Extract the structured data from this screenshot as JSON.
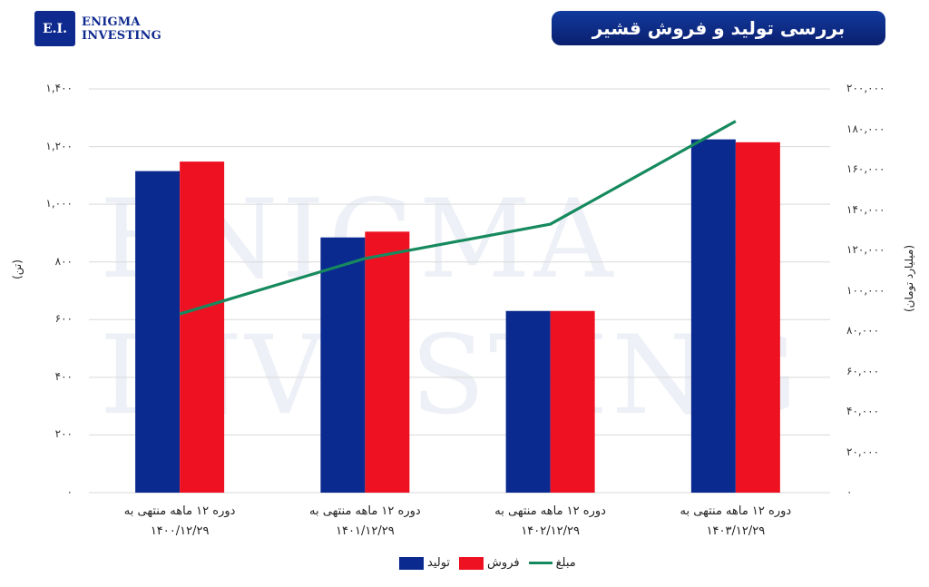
{
  "header": {
    "logo_mark": "E.I.",
    "logo_line1": "ENIGMA",
    "logo_line2": "INVESTING",
    "title": "بررسی تولید و فروش قشیر"
  },
  "watermark": "ENIGMA\nINVESTING",
  "colors": {
    "production": "#0a2a8f",
    "sales": "#ee1122",
    "amount": "#168a5e",
    "title_bg": "#0f2a8f"
  },
  "axes": {
    "left_label": "(تن)",
    "right_label": "(میلیارد تومان)",
    "left_ticks": [
      "۰",
      "۲۰۰",
      "۴۰۰",
      "۶۰۰",
      "۸۰۰",
      "۱,۰۰۰",
      "۱,۲۰۰",
      "۱,۴۰۰"
    ],
    "right_ticks": [
      "۰",
      "۲۰,۰۰۰",
      "۴۰,۰۰۰",
      "۶۰,۰۰۰",
      "۸۰,۰۰۰",
      "۱۰۰,۰۰۰",
      "۱۲۰,۰۰۰",
      "۱۴۰,۰۰۰",
      "۱۶۰,۰۰۰",
      "۱۸۰,۰۰۰",
      "۲۰۰,۰۰۰"
    ]
  },
  "categories": [
    {
      "line1": "دوره ۱۲ ماهه منتهی به",
      "line2": "۱۴۰۰/۱۲/۲۹"
    },
    {
      "line1": "دوره ۱۲ ماهه منتهی به",
      "line2": "۱۴۰۱/۱۲/۲۹"
    },
    {
      "line1": "دوره ۱۲ ماهه منتهی به",
      "line2": "۱۴۰۲/۱۲/۲۹"
    },
    {
      "line1": "دوره ۱۲ ماهه منتهی به",
      "line2": "۱۴۰۳/۱۲/۲۹"
    }
  ],
  "legend": {
    "amount": "مبلغ",
    "sales": "فروش",
    "production": "تولید"
  },
  "chart_data": {
    "type": "bar",
    "title": "بررسی تولید و فروش قشیر",
    "categories": [
      "1400/12/29",
      "1401/12/29",
      "1402/12/29",
      "1403/12/29"
    ],
    "series": [
      {
        "name": "تولید",
        "type": "bar",
        "axis": "left",
        "values": [
          1115,
          885,
          630,
          1225
        ]
      },
      {
        "name": "فروش",
        "type": "bar",
        "axis": "left",
        "values": [
          1148,
          905,
          630,
          1215
        ]
      },
      {
        "name": "مبلغ",
        "type": "line",
        "axis": "right",
        "values": [
          88500,
          116000,
          133000,
          184000
        ]
      }
    ],
    "ylabel": "(تن)",
    "ylabel_right": "(میلیارد تومان)",
    "ylim": [
      0,
      1400
    ],
    "ylim_right": [
      0,
      200000
    ],
    "grid": true,
    "legend_position": "bottom"
  }
}
